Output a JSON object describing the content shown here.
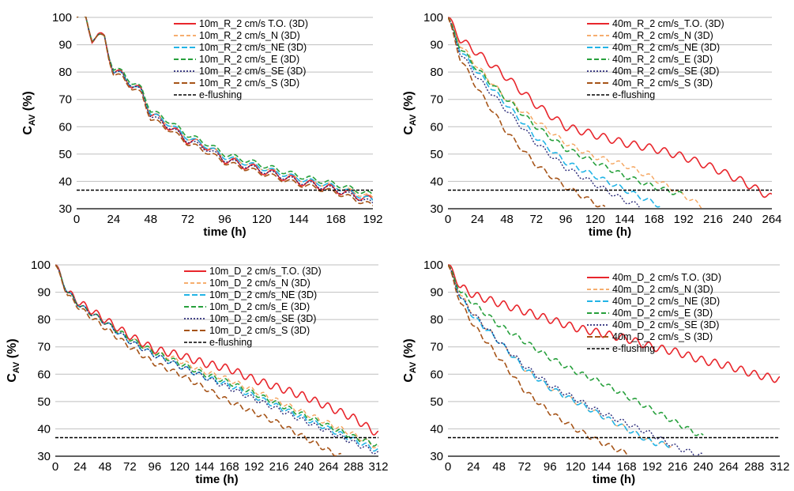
{
  "colors": {
    "T.O.": "#e8262c",
    "N": "#f5a35b",
    "NE": "#22b4e6",
    "E": "#27a03c",
    "SE": "#2c2c7a",
    "S": "#a65418",
    "e-flushing": "#000000",
    "grid": "#bfbfbf"
  },
  "chart_data": [
    {
      "type": "line",
      "panel": "top-left",
      "xlabel": "time (h)",
      "ylabel_main": "C",
      "ylabel_sub": "AV",
      "ylabel_unit": " (%)",
      "xlim": [
        0,
        192
      ],
      "ylim": [
        30,
        100
      ],
      "xticks": [
        "0",
        "24",
        "48",
        "72",
        "96",
        "120",
        "144",
        "168",
        "192"
      ],
      "yticks": [
        "30",
        "40",
        "50",
        "60",
        "70",
        "80",
        "90",
        "100"
      ],
      "legend_position": "top-right",
      "threshold": {
        "name": "e-flushing",
        "value": 36.8
      },
      "series": [
        {
          "name": "10m_R_2 cm/s T.O. (3D)",
          "key": "T.O.",
          "x": [
            0,
            6,
            10,
            14,
            18,
            21,
            24,
            30,
            36,
            42,
            48,
            60,
            72,
            84,
            96,
            120,
            144,
            168,
            192
          ],
          "y": [
            100,
            100,
            92,
            93,
            93,
            86,
            80,
            79,
            75,
            73,
            65,
            60,
            55,
            53,
            48,
            44,
            40,
            37,
            33
          ]
        },
        {
          "name": "10m_R_2 cm/s_N (3D)",
          "key": "N",
          "x": [
            0,
            6,
            10,
            14,
            18,
            21,
            24,
            30,
            36,
            42,
            48,
            60,
            72,
            84,
            96,
            120,
            144,
            168,
            192
          ],
          "y": [
            100,
            100,
            92,
            93,
            93,
            86,
            80,
            79,
            75,
            73,
            65,
            61,
            56,
            53,
            49,
            45,
            41,
            38,
            34
          ]
        },
        {
          "name": "10m_R_2 cm/s_NE (3D)",
          "key": "NE",
          "x": [
            0,
            6,
            10,
            14,
            18,
            21,
            24,
            30,
            36,
            42,
            48,
            60,
            72,
            84,
            96,
            120,
            144,
            168,
            192
          ],
          "y": [
            100,
            100,
            92,
            93,
            93,
            86,
            80,
            79,
            75,
            73,
            65,
            61,
            56,
            53,
            49,
            45,
            41,
            38,
            33
          ]
        },
        {
          "name": "10m_R_2 cm/s_E (3D)",
          "key": "E",
          "x": [
            0,
            6,
            10,
            14,
            18,
            21,
            24,
            30,
            36,
            42,
            48,
            60,
            72,
            84,
            96,
            120,
            144,
            168,
            192
          ],
          "y": [
            100,
            100,
            92,
            93,
            93,
            86,
            81,
            80,
            76,
            74,
            66,
            62,
            57,
            54,
            50,
            46,
            42,
            39,
            35
          ]
        },
        {
          "name": "10m_R_2 cm/s_SE (3D)",
          "key": "SE",
          "x": [
            0,
            6,
            10,
            14,
            18,
            21,
            24,
            30,
            36,
            42,
            48,
            60,
            72,
            84,
            96,
            120,
            144,
            168,
            192
          ],
          "y": [
            100,
            100,
            92,
            93,
            93,
            86,
            80,
            79,
            75,
            73,
            64,
            60,
            55,
            52,
            48,
            44,
            40,
            37,
            32
          ]
        },
        {
          "name": "10m_R_2 cm/s_S (3D)",
          "key": "S",
          "x": [
            0,
            6,
            10,
            14,
            18,
            21,
            24,
            30,
            36,
            42,
            48,
            60,
            72,
            84,
            96,
            120,
            144,
            168,
            192
          ],
          "y": [
            100,
            100,
            92,
            93,
            93,
            85,
            79,
            78,
            74,
            72,
            63,
            59,
            54,
            51,
            47,
            43,
            39,
            36,
            31
          ]
        }
      ]
    },
    {
      "type": "line",
      "panel": "top-right",
      "xlabel": "time (h)",
      "ylabel_main": "C",
      "ylabel_sub": "AV",
      "ylabel_unit": " (%)",
      "xlim": [
        0,
        264
      ],
      "ylim": [
        30,
        100
      ],
      "xticks": [
        "0",
        "24",
        "48",
        "72",
        "96",
        "120",
        "144",
        "168",
        "192",
        "216",
        "240",
        "264"
      ],
      "yticks": [
        "30",
        "40",
        "50",
        "60",
        "70",
        "80",
        "90",
        "100"
      ],
      "legend_position": "top-right",
      "threshold": {
        "name": "e-flushing",
        "value": 36.8
      },
      "series": [
        {
          "name": "40m_R_2 cm/s_T.O. (3D)",
          "key": "T.O.",
          "x": [
            0,
            10,
            24,
            48,
            72,
            96,
            120,
            144,
            168,
            192,
            216,
            240,
            264
          ],
          "y": [
            100,
            92,
            87,
            78,
            68,
            60,
            57,
            54,
            52,
            49,
            45,
            40,
            34
          ]
        },
        {
          "name": "40m_R_2 cm/s_N (3D)",
          "key": "N",
          "x": [
            0,
            10,
            24,
            48,
            72,
            96,
            120,
            144,
            168,
            192,
            210
          ],
          "y": [
            100,
            90,
            82,
            70,
            62,
            54,
            49,
            46,
            41,
            35,
            30
          ]
        },
        {
          "name": "40m_R_2 cm/s_NE (3D)",
          "key": "NE",
          "x": [
            0,
            10,
            24,
            48,
            72,
            96,
            120,
            144,
            168,
            174
          ],
          "y": [
            100,
            88,
            80,
            68,
            56,
            47,
            42,
            37,
            32,
            31
          ]
        },
        {
          "name": "40m_R_2 cm/s_E (3D)",
          "key": "E",
          "x": [
            0,
            10,
            24,
            48,
            72,
            96,
            120,
            144,
            168,
            192
          ],
          "y": [
            100,
            89,
            81,
            70,
            60,
            52,
            47,
            42,
            38,
            35
          ]
        },
        {
          "name": "40m_R_2 cm/s_SE (3D)",
          "key": "SE",
          "x": [
            0,
            10,
            24,
            48,
            72,
            96,
            120,
            144,
            156
          ],
          "y": [
            100,
            87,
            78,
            66,
            54,
            45,
            39,
            33,
            31
          ]
        },
        {
          "name": "40m_R_2 cm/s_S (3D)",
          "key": "S",
          "x": [
            0,
            10,
            24,
            48,
            72,
            96,
            108,
            120,
            128
          ],
          "y": [
            100,
            85,
            74,
            58,
            46,
            38,
            35,
            32,
            30
          ]
        }
      ]
    },
    {
      "type": "line",
      "panel": "bottom-left",
      "xlabel": "time (h)",
      "ylabel_main": "C",
      "ylabel_sub": "AV",
      "ylabel_unit": " (%)",
      "xlim": [
        0,
        312
      ],
      "ylim": [
        30,
        100
      ],
      "xticks": [
        "0",
        "24",
        "48",
        "72",
        "96",
        "120",
        "144",
        "168",
        "192",
        "216",
        "240",
        "264",
        "288",
        "312"
      ],
      "yticks": [
        "30",
        "40",
        "50",
        "60",
        "70",
        "80",
        "90",
        "100"
      ],
      "legend_position": "top-right",
      "threshold": {
        "name": "e-flushing",
        "value": 36.8
      },
      "series": [
        {
          "name": "10m_D_2 cm/s_T.O. (3D)",
          "key": "T.O.",
          "x": [
            0,
            12,
            24,
            48,
            72,
            96,
            120,
            144,
            168,
            192,
            216,
            240,
            264,
            288,
            312
          ],
          "y": [
            100,
            90,
            86,
            80,
            74,
            69,
            67,
            64,
            62,
            58,
            55,
            52,
            48,
            44,
            38
          ]
        },
        {
          "name": "10m_D_2 cm/s_N (3D)",
          "key": "N",
          "x": [
            0,
            12,
            24,
            48,
            72,
            96,
            120,
            144,
            168,
            192,
            216,
            240,
            264,
            288,
            312
          ],
          "y": [
            100,
            90,
            85,
            79,
            73,
            68,
            65,
            61,
            58,
            54,
            50,
            46,
            42,
            38,
            33
          ]
        },
        {
          "name": "10m_D_2 cm/s_NE (3D)",
          "key": "NE",
          "x": [
            0,
            12,
            24,
            48,
            72,
            96,
            120,
            144,
            168,
            192,
            216,
            240,
            264,
            288,
            312
          ],
          "y": [
            100,
            90,
            85,
            79,
            72,
            67,
            63,
            59,
            56,
            52,
            48,
            44,
            40,
            36,
            32
          ]
        },
        {
          "name": "10m_D_2 cm/s_E (3D)",
          "key": "E",
          "x": [
            0,
            12,
            24,
            48,
            72,
            96,
            120,
            144,
            168,
            192,
            216,
            240,
            264,
            288,
            312
          ],
          "y": [
            100,
            90,
            85,
            79,
            73,
            68,
            64,
            60,
            57,
            53,
            49,
            45,
            41,
            37,
            34
          ]
        },
        {
          "name": "10m_D_2 cm/s_SE (3D)",
          "key": "SE",
          "x": [
            0,
            12,
            24,
            48,
            72,
            96,
            120,
            144,
            168,
            192,
            216,
            240,
            264,
            288,
            312
          ],
          "y": [
            100,
            90,
            85,
            79,
            72,
            67,
            63,
            59,
            55,
            51,
            47,
            43,
            39,
            35,
            31
          ]
        },
        {
          "name": "10m_D_2 cm/s_S (3D)",
          "key": "S",
          "x": [
            0,
            12,
            24,
            48,
            72,
            96,
            120,
            144,
            168,
            192,
            216,
            240,
            264,
            276
          ],
          "y": [
            100,
            89,
            84,
            77,
            70,
            64,
            60,
            55,
            50,
            46,
            42,
            37,
            32,
            30
          ]
        }
      ]
    },
    {
      "type": "line",
      "panel": "bottom-right",
      "xlabel": "time (h)",
      "ylabel_main": "C",
      "ylabel_sub": "AV",
      "ylabel_unit": " (%)",
      "xlim": [
        0,
        312
      ],
      "ylim": [
        30,
        100
      ],
      "xticks": [
        "0",
        "24",
        "48",
        "72",
        "96",
        "120",
        "144",
        "168",
        "192",
        "216",
        "240",
        "264",
        "288",
        "312"
      ],
      "yticks": [
        "30",
        "40",
        "50",
        "60",
        "70",
        "80",
        "90",
        "100"
      ],
      "legend_position": "top-right",
      "threshold": {
        "name": "e-flushing",
        "value": 36.8
      },
      "series": [
        {
          "name": "40m_D_2 cm/s T.O. (3D)",
          "key": "T.O.",
          "x": [
            0,
            12,
            24,
            48,
            72,
            96,
            120,
            144,
            168,
            192,
            216,
            240,
            264,
            288,
            312
          ],
          "y": [
            100,
            92,
            89,
            86,
            83,
            80,
            77,
            75,
            73,
            70,
            68,
            65,
            63,
            60,
            58
          ]
        },
        {
          "name": "40m_D_2 cm/s_N (3D)",
          "key": "N",
          "x": [
            0,
            12,
            24,
            48,
            72,
            96,
            120,
            144,
            168,
            192,
            210
          ],
          "y": [
            100,
            89,
            82,
            72,
            62,
            55,
            50,
            45,
            40,
            35,
            34
          ]
        },
        {
          "name": "40m_D_2 cm/s_NE (3D)",
          "key": "NE",
          "x": [
            0,
            12,
            24,
            48,
            72,
            96,
            120,
            144,
            168,
            192,
            210
          ],
          "y": [
            100,
            88,
            81,
            72,
            62,
            55,
            50,
            45,
            40,
            35,
            34
          ]
        },
        {
          "name": "40m_D_2 cm/s_E (3D)",
          "key": "E",
          "x": [
            0,
            12,
            24,
            48,
            72,
            96,
            120,
            144,
            168,
            192,
            216,
            240
          ],
          "y": [
            100,
            90,
            86,
            78,
            72,
            66,
            61,
            57,
            52,
            47,
            42,
            37
          ]
        },
        {
          "name": "40m_D_2 cm/s_SE (3D)",
          "key": "SE",
          "x": [
            0,
            12,
            24,
            48,
            72,
            96,
            120,
            144,
            168,
            192,
            216,
            240
          ],
          "y": [
            100,
            88,
            82,
            72,
            63,
            56,
            51,
            46,
            42,
            38,
            33,
            30
          ]
        },
        {
          "name": "40m_D_2 cm/s_S (3D)",
          "key": "S",
          "x": [
            0,
            12,
            24,
            48,
            72,
            96,
            120,
            144,
            168,
            172
          ],
          "y": [
            100,
            86,
            78,
            66,
            54,
            46,
            40,
            35,
            31,
            30
          ]
        }
      ]
    }
  ]
}
